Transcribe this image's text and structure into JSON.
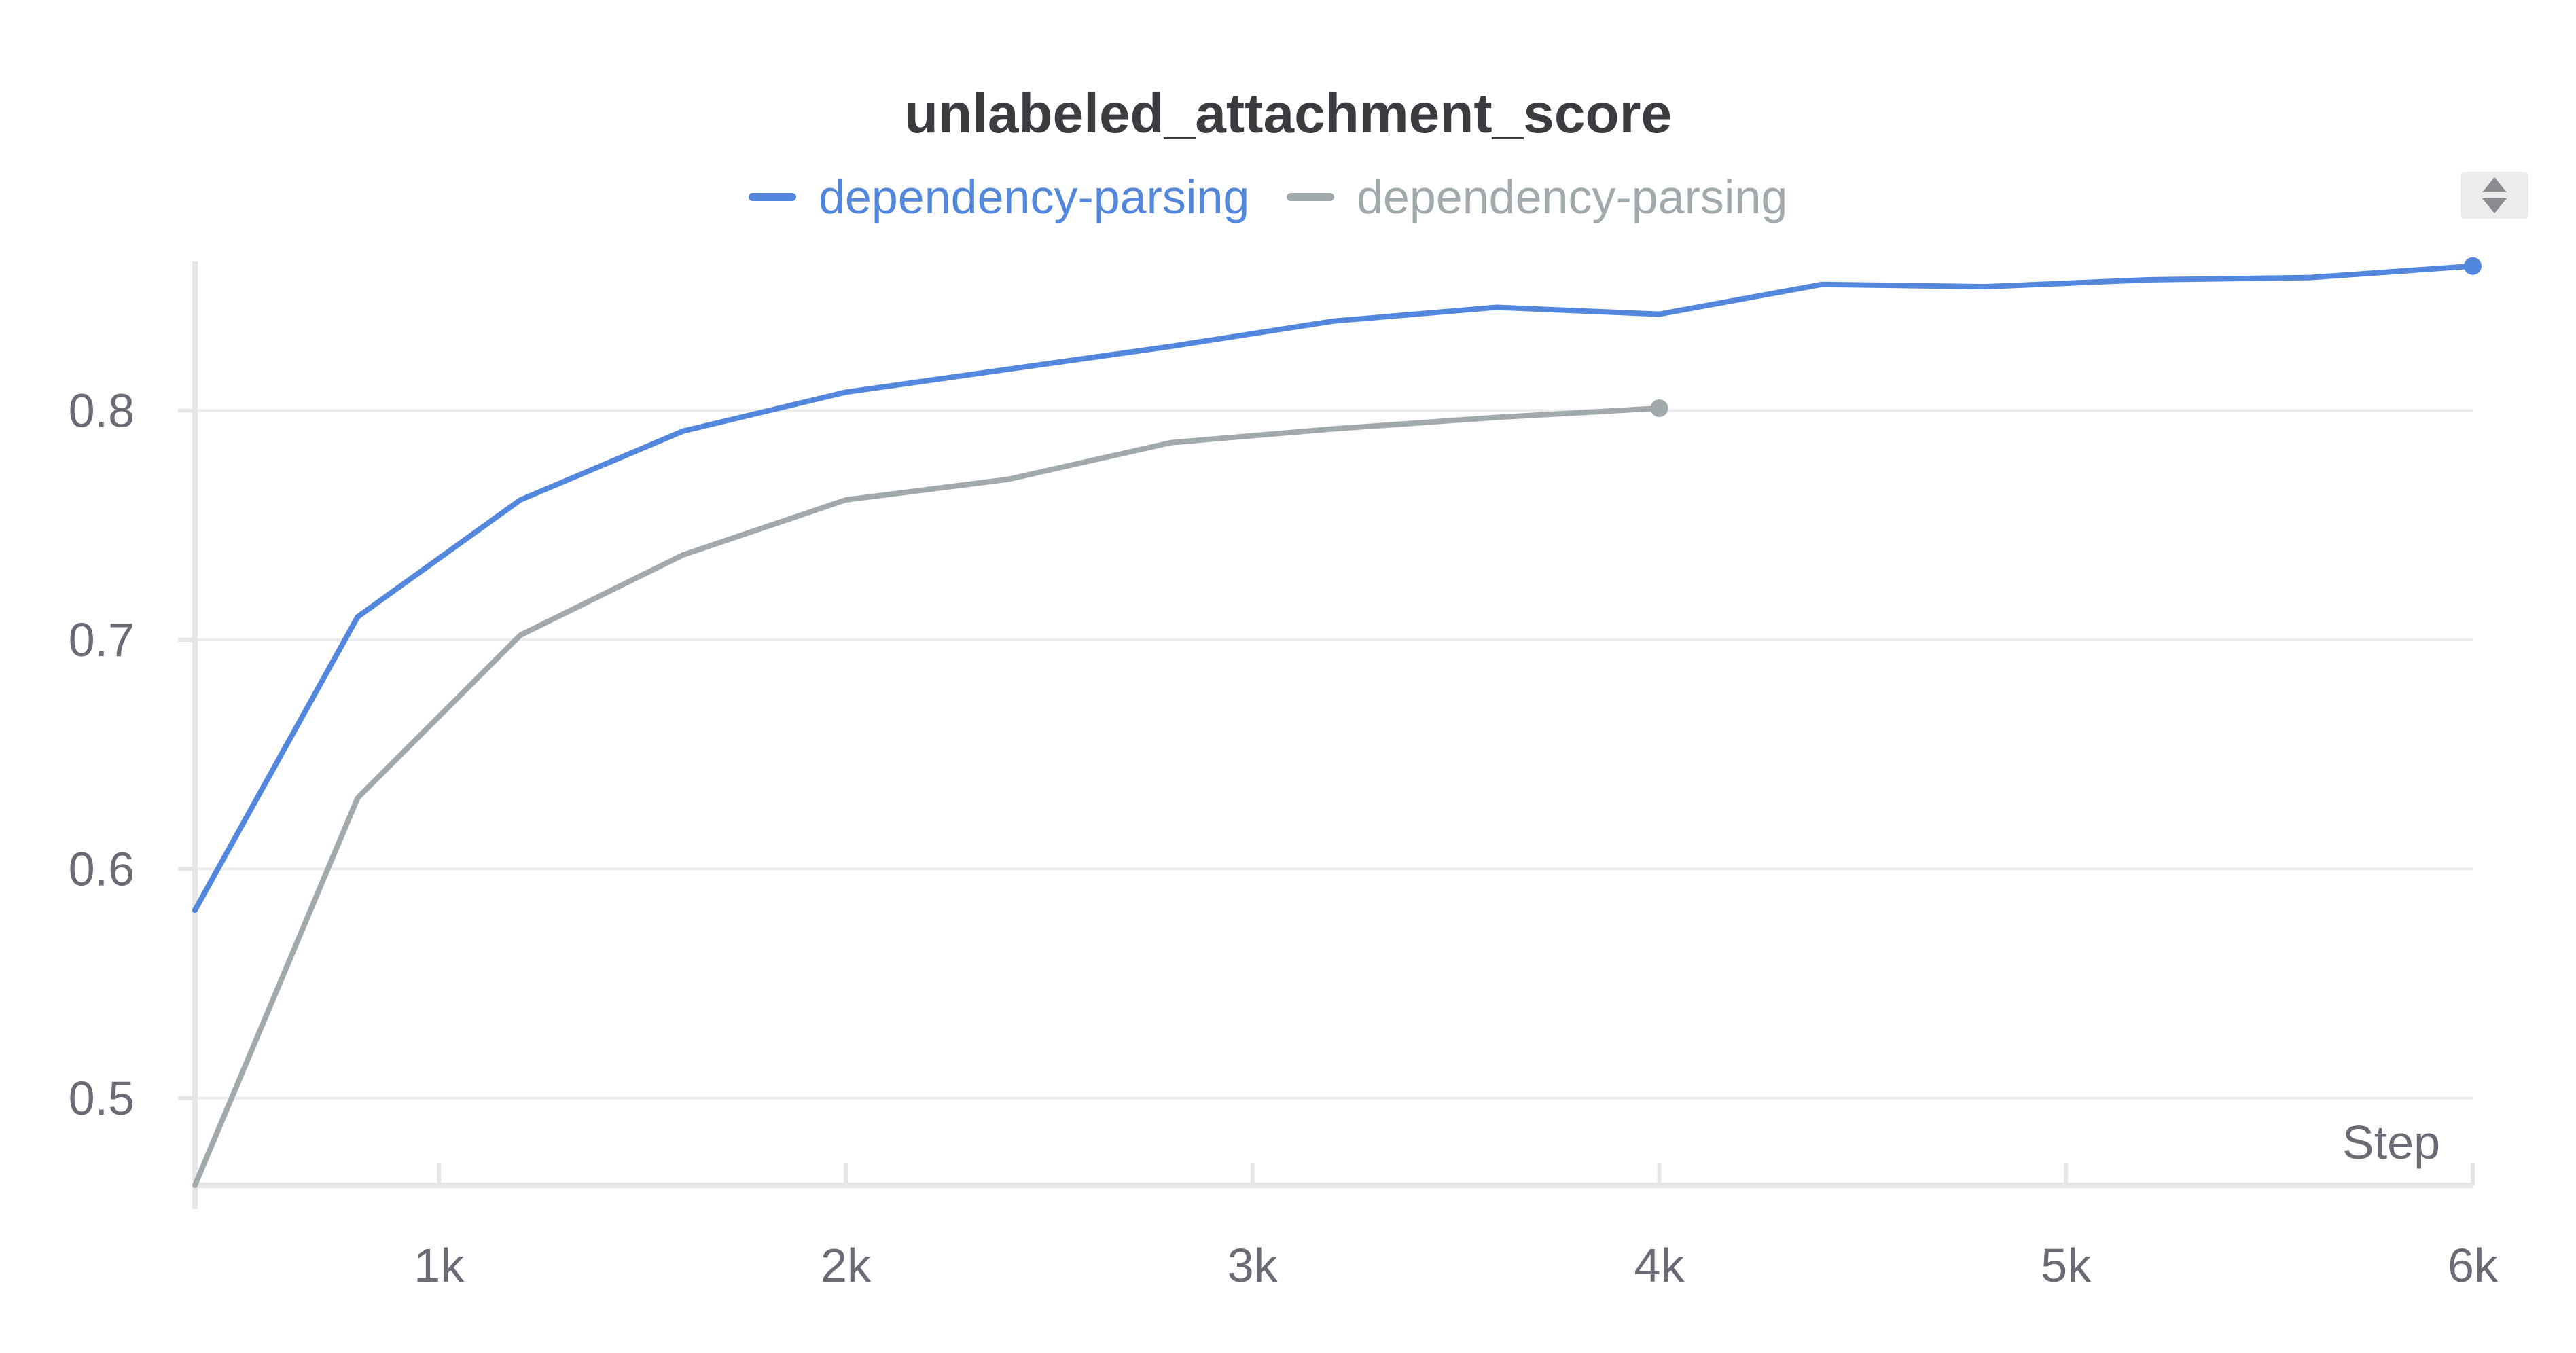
{
  "chart_data": {
    "type": "line",
    "title": "unlabeled_attachment_score",
    "xlabel": "Step",
    "ylabel": "",
    "xlim": [
      400,
      6000
    ],
    "ylim": [
      0.462,
      0.865
    ],
    "x_ticks": [
      1000,
      2000,
      3000,
      4000,
      5000,
      6000
    ],
    "x_tick_labels": [
      "1k",
      "2k",
      "3k",
      "4k",
      "5k",
      "6k"
    ],
    "y_ticks": [
      0.5,
      0.6,
      0.7,
      0.8
    ],
    "y_tick_labels": [
      "0.5",
      "0.6",
      "0.7",
      "0.8"
    ],
    "grid": true,
    "legend_position": "top-center",
    "series": [
      {
        "name": "dependency-parsing",
        "color": "#5387dd",
        "x": [
          400,
          800,
          1200,
          1600,
          2000,
          2400,
          2800,
          3200,
          3600,
          4000,
          4400,
          4800,
          5200,
          5600,
          6000
        ],
        "y": [
          0.582,
          0.71,
          0.761,
          0.791,
          0.808,
          0.818,
          0.828,
          0.839,
          0.845,
          0.842,
          0.855,
          0.854,
          0.857,
          0.858,
          0.863
        ]
      },
      {
        "name": "dependency-parsing",
        "color": "#a1a9ad",
        "x": [
          400,
          800,
          1200,
          1600,
          2000,
          2400,
          2800,
          3200,
          3600,
          4000
        ],
        "y": [
          0.462,
          0.631,
          0.702,
          0.737,
          0.761,
          0.77,
          0.786,
          0.792,
          0.797,
          0.801
        ]
      }
    ]
  },
  "axis_color": "#e6e6e6",
  "grid_color": "#ececec",
  "text_color": "#6b6b76",
  "title_color": "#3b3b40",
  "legend_control_icon": "sort-arrows-icon"
}
